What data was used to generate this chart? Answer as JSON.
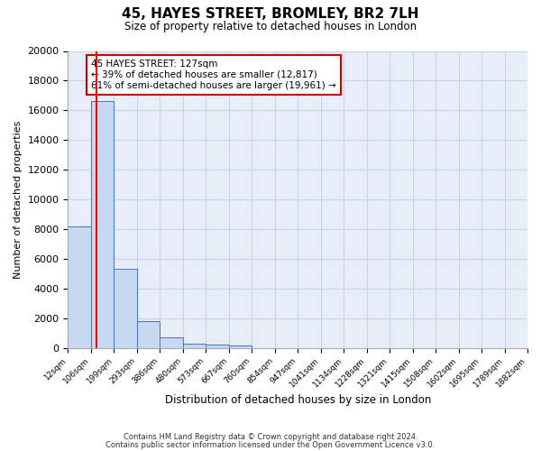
{
  "title": "45, HAYES STREET, BROMLEY, BR2 7LH",
  "subtitle": "Size of property relative to detached houses in London",
  "xlabel": "Distribution of detached houses by size in London",
  "ylabel": "Number of detached properties",
  "bin_edges": [
    12,
    106,
    199,
    293,
    386,
    480,
    573,
    667,
    760,
    854,
    947,
    1041,
    1134,
    1228,
    1321,
    1415,
    1508,
    1602,
    1695,
    1789,
    1882
  ],
  "bin_edge_labels": [
    "12sqm",
    "106sqm",
    "199sqm",
    "293sqm",
    "386sqm",
    "480sqm",
    "573sqm",
    "667sqm",
    "760sqm",
    "854sqm",
    "947sqm",
    "1041sqm",
    "1134sqm",
    "1228sqm",
    "1321sqm",
    "1415sqm",
    "1508sqm",
    "1602sqm",
    "1695sqm",
    "1789sqm",
    "1882sqm"
  ],
  "bar_heights": [
    8200,
    16600,
    5300,
    1800,
    700,
    300,
    200,
    150,
    0,
    0,
    0,
    0,
    0,
    0,
    0,
    0,
    0,
    0,
    0,
    0
  ],
  "bar_color": "#c6d9f0",
  "bar_edge_color": "#4472c4",
  "property_sqm": 127,
  "annotation_title": "45 HAYES STREET: 127sqm",
  "annotation_line1": "← 39% of detached houses are smaller (12,817)",
  "annotation_line2": "61% of semi-detached houses are larger (19,961) →",
  "annotation_box_color": "#ffffff",
  "annotation_box_edge": "#cc0000",
  "ylim": [
    0,
    20000
  ],
  "yticks": [
    0,
    2000,
    4000,
    6000,
    8000,
    10000,
    12000,
    14000,
    16000,
    18000,
    20000
  ],
  "grid_color": "#c8d4e8",
  "background_color": "#e8eef8",
  "footer1": "Contains HM Land Registry data © Crown copyright and database right 2024.",
  "footer2": "Contains public sector information licensed under the Open Government Licence v3.0."
}
